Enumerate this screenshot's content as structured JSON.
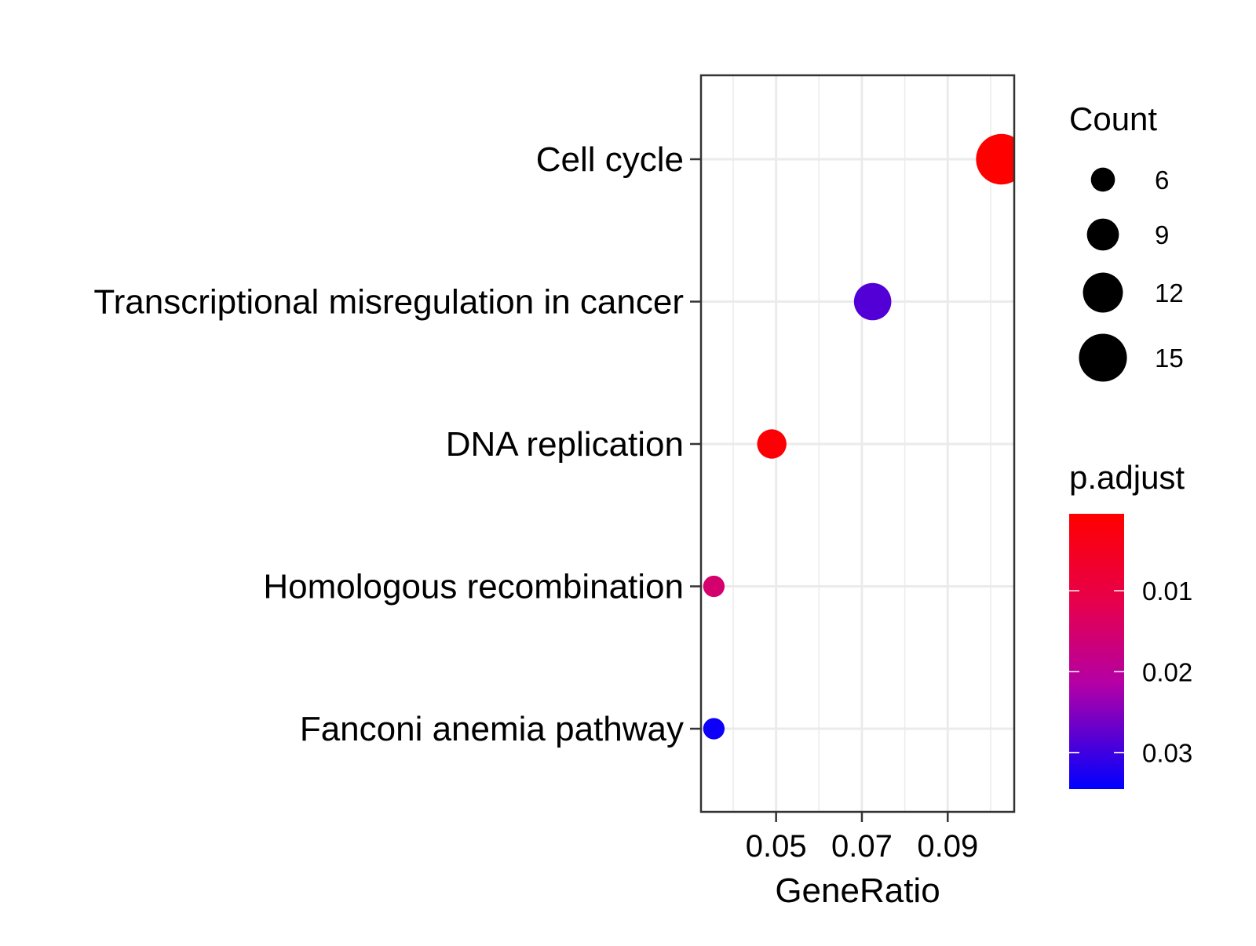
{
  "chart_data": {
    "type": "scatter",
    "title": "",
    "xlabel": "GeneRatio",
    "ylabel": "",
    "x_ticks": [
      "0.05",
      "0.07",
      "0.09"
    ],
    "x_tick_values": [
      0.05,
      0.07,
      0.09
    ],
    "xlim": [
      0.0325,
      0.1055
    ],
    "grid": true,
    "categories": [
      "Cell cycle",
      "Transcriptional misregulation in cancer",
      "DNA replication",
      "Homologous recombination",
      "Fanconi anemia pathway"
    ],
    "points": [
      {
        "category": "Cell cycle",
        "gene_ratio": 0.1025,
        "count": 16,
        "p_adjust": 0.0005
      },
      {
        "category": "Transcriptional misregulation in cancer",
        "gene_ratio": 0.0725,
        "count": 11,
        "p_adjust": 0.0285
      },
      {
        "category": "DNA replication",
        "gene_ratio": 0.049,
        "count": 8,
        "p_adjust": 0.0012
      },
      {
        "category": "Homologous recombination",
        "gene_ratio": 0.0355,
        "count": 5,
        "p_adjust": 0.0152
      },
      {
        "category": "Fanconi anemia pathway",
        "gene_ratio": 0.0355,
        "count": 5,
        "p_adjust": 0.0335
      }
    ],
    "legend_size": {
      "title": "Count",
      "labels": [
        "6",
        "9",
        "12",
        "15"
      ],
      "values": [
        6,
        9,
        12,
        15
      ]
    },
    "legend_color": {
      "title": "p.adjust",
      "labels": [
        "0.01",
        "0.02",
        "0.03"
      ],
      "values": [
        0.01,
        0.02,
        0.03
      ],
      "range": [
        0.0005,
        0.0345
      ],
      "low_color": "#FF0000",
      "high_color": "#0000FF"
    },
    "legend_placement": "right"
  }
}
